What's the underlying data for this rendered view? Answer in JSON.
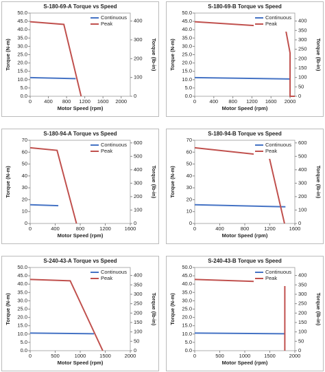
{
  "chart_data": [
    {
      "type": "line",
      "title": "S-180-69-A Torque vs Speed",
      "x_label": "Motor Speed (rpm)",
      "y_label": "Torque (N-m)",
      "y2_label": "Torque (lb-in)",
      "xlim": [
        0,
        2200
      ],
      "xticks": [
        0,
        400,
        800,
        1200,
        1600,
        2000
      ],
      "ylim": [
        0,
        50
      ],
      "yticks": [
        {
          "value": 0,
          "label": "0.0"
        },
        {
          "value": 5,
          "label": "5.0"
        },
        {
          "value": 10,
          "label": "10.0"
        },
        {
          "value": 15,
          "label": "15.0"
        },
        {
          "value": 20,
          "label": "20.0"
        },
        {
          "value": 25,
          "label": "25.0"
        },
        {
          "value": 30,
          "label": "30.0"
        },
        {
          "value": 35,
          "label": "35.0"
        },
        {
          "value": 40,
          "label": "40.0"
        },
        {
          "value": 45,
          "label": "45.0"
        },
        {
          "value": 50,
          "label": "50.0"
        }
      ],
      "y2lim": [
        0,
        442.5
      ],
      "y2ticks": [
        0,
        100,
        200,
        300,
        400
      ],
      "legend": "upper right",
      "series": [
        {
          "name": "Continuous",
          "color": "#4472c4",
          "x": [
            0,
            1000
          ],
          "values": [
            11.2,
            10.6
          ]
        },
        {
          "name": "Peak",
          "color": "#c0504d",
          "x": [
            0,
            740,
            1120
          ],
          "values": [
            44.8,
            43.2,
            0
          ]
        }
      ]
    },
    {
      "type": "line",
      "title": "S-180-69-B Torque vs Speed",
      "x_label": "Motor Speed (rpm)",
      "y_label": "Torque (N-m)",
      "y2_label": "Torque (lb-in)",
      "xlim": [
        0,
        2100
      ],
      "xticks": [
        0,
        400,
        800,
        1200,
        1600,
        2000
      ],
      "ylim": [
        0,
        50
      ],
      "yticks": [
        {
          "value": 0,
          "label": "0.0"
        },
        {
          "value": 5,
          "label": "5.0"
        },
        {
          "value": 10,
          "label": "10.0"
        },
        {
          "value": 15,
          "label": "15.0"
        },
        {
          "value": 20,
          "label": "20.0"
        },
        {
          "value": 25,
          "label": "25.0"
        },
        {
          "value": 30,
          "label": "30.0"
        },
        {
          "value": 35,
          "label": "35.0"
        },
        {
          "value": 40,
          "label": "40.0"
        },
        {
          "value": 45,
          "label": "45.0"
        },
        {
          "value": 50,
          "label": "50.0"
        }
      ],
      "y2lim": [
        0,
        442.5
      ],
      "y2ticks": [
        0,
        50,
        100,
        150,
        200,
        250,
        300,
        350,
        400
      ],
      "legend": "upper right",
      "series": [
        {
          "name": "Continuous",
          "color": "#4472c4",
          "x": [
            0,
            2000
          ],
          "values": [
            11.2,
            10.4
          ]
        },
        {
          "name": "Peak",
          "color": "#c0504d",
          "x": [
            0,
            1900,
            2000,
            2000,
            2100
          ],
          "values": [
            44.8,
            41.3,
            26,
            0,
            0
          ]
        }
      ]
    },
    {
      "type": "line",
      "title": "S-180-94-A Torque vs Speed",
      "x_label": "Motor Speed (rpm)",
      "y_label": "Torque (N-m)",
      "y2_label": "Torque (lb-in)",
      "xlim": [
        0,
        1600
      ],
      "xticks": [
        0,
        400,
        800,
        1200,
        1600
      ],
      "ylim": [
        0,
        70
      ],
      "yticks": [
        0,
        10,
        20,
        30,
        40,
        50,
        60,
        70
      ],
      "y2lim": [
        0,
        619.5
      ],
      "y2ticks": [
        0,
        100,
        200,
        300,
        400,
        500,
        600
      ],
      "legend": "upper right",
      "series": [
        {
          "name": "Continuous",
          "color": "#4472c4",
          "x": [
            0,
            450
          ],
          "values": [
            15.8,
            15
          ]
        },
        {
          "name": "Peak",
          "color": "#c0504d",
          "x": [
            0,
            430,
            740
          ],
          "values": [
            63.7,
            61.5,
            0
          ]
        }
      ]
    },
    {
      "type": "line",
      "title": "S-180-94-B Torque vs Speed",
      "x_label": "Motor Speed (rpm)",
      "y_label": "Torque (N-m)",
      "y2_label": "Torque (lb-in)",
      "xlim": [
        0,
        1600
      ],
      "xticks": [
        0,
        400,
        800,
        1200,
        1600
      ],
      "ylim": [
        0,
        70
      ],
      "yticks": [
        0,
        10,
        20,
        30,
        40,
        50,
        60,
        70
      ],
      "y2lim": [
        0,
        619.5
      ],
      "y2ticks": [
        0,
        100,
        200,
        300,
        400,
        500,
        600
      ],
      "legend": "upper right",
      "series": [
        {
          "name": "Continuous",
          "color": "#4472c4",
          "x": [
            0,
            1450
          ],
          "values": [
            15.8,
            14
          ]
        },
        {
          "name": "Peak",
          "color": "#c0504d",
          "x": [
            0,
            1185,
            1435
          ],
          "values": [
            63.7,
            57,
            0
          ]
        }
      ]
    },
    {
      "type": "line",
      "title": "S-240-43-A Torque vs Speed",
      "x_label": "Motor Speed (rpm)",
      "y_label": "Torque (N-m)",
      "y2_label": "Torque (lb-in)",
      "xlim": [
        0,
        2000
      ],
      "xticks": [
        0,
        500,
        1000,
        1500,
        2000
      ],
      "ylim": [
        0,
        50
      ],
      "yticks": [
        {
          "value": 0,
          "label": "0.0"
        },
        {
          "value": 5,
          "label": "5.0"
        },
        {
          "value": 10,
          "label": "10.0"
        },
        {
          "value": 15,
          "label": "15.0"
        },
        {
          "value": 20,
          "label": "20.0"
        },
        {
          "value": 25,
          "label": "25.0"
        },
        {
          "value": 30,
          "label": "30.0"
        },
        {
          "value": 35,
          "label": "35.0"
        },
        {
          "value": 40,
          "label": "40.0"
        },
        {
          "value": 45,
          "label": "45.0"
        },
        {
          "value": 50,
          "label": "50.0"
        }
      ],
      "y2lim": [
        0,
        442.5
      ],
      "y2ticks": [
        0,
        50,
        100,
        150,
        200,
        250,
        300,
        350,
        400
      ],
      "legend": "upper right",
      "series": [
        {
          "name": "Continuous",
          "color": "#4472c4",
          "x": [
            0,
            1275
          ],
          "values": [
            10.6,
            10.2
          ]
        },
        {
          "name": "Peak",
          "color": "#c0504d",
          "x": [
            0,
            800,
            1450
          ],
          "values": [
            42.8,
            42,
            0
          ]
        }
      ]
    },
    {
      "type": "line",
      "title": "S-240-43-B Torque vs Speed",
      "x_label": "Motor Speed (rpm)",
      "y_label": "Torque (N-m)",
      "y2_label": "Torque (lb-in)",
      "xlim": [
        0,
        2000
      ],
      "xticks": [
        0,
        500,
        1000,
        1500,
        2000
      ],
      "ylim": [
        0,
        50
      ],
      "yticks": [
        {
          "value": 0,
          "label": "0.0"
        },
        {
          "value": 5,
          "label": "5.0"
        },
        {
          "value": 10,
          "label": "10.0"
        },
        {
          "value": 15,
          "label": "15.0"
        },
        {
          "value": 20,
          "label": "20.0"
        },
        {
          "value": 25,
          "label": "25.0"
        },
        {
          "value": 30,
          "label": "30.0"
        },
        {
          "value": 35,
          "label": "35.0"
        },
        {
          "value": 40,
          "label": "40.0"
        },
        {
          "value": 45,
          "label": "45.0"
        },
        {
          "value": 50,
          "label": "50.0"
        }
      ],
      "y2lim": [
        0,
        442.5
      ],
      "y2ticks": [
        0,
        50,
        100,
        150,
        200,
        250,
        300,
        350,
        400
      ],
      "legend": "upper right",
      "series": [
        {
          "name": "Continuous",
          "color": "#4472c4",
          "x": [
            0,
            1800
          ],
          "values": [
            10.6,
            10.2
          ]
        },
        {
          "name": "Peak",
          "color": "#c0504d",
          "x": [
            0,
            1800,
            1800
          ],
          "values": [
            42.8,
            41,
            0
          ]
        }
      ]
    }
  ]
}
